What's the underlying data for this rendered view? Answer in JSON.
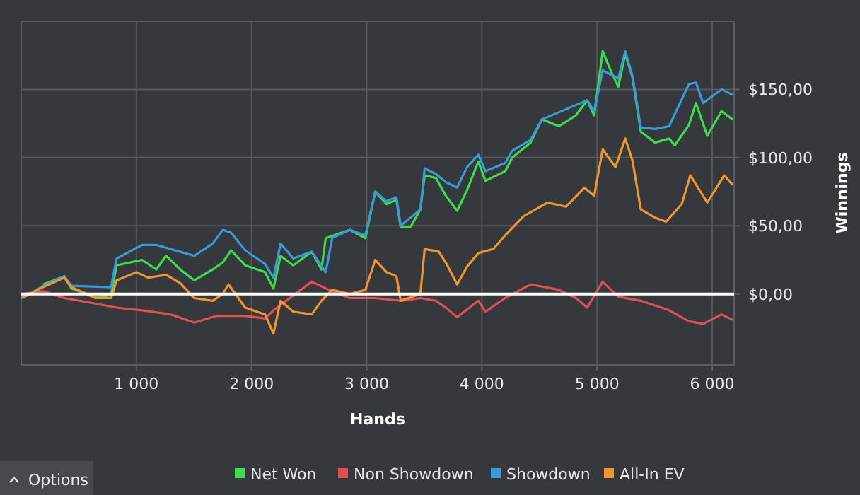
{
  "chart_data": {
    "type": "line",
    "xlabel": "Hands",
    "ylabel": "Winnings",
    "xlim": [
      0,
      6190
    ],
    "ylim": [
      -52,
      200
    ],
    "xticks": [
      {
        "value": 1000,
        "label": "1 000"
      },
      {
        "value": 2000,
        "label": "2 000"
      },
      {
        "value": 3000,
        "label": "3 000"
      },
      {
        "value": 4000,
        "label": "4 000"
      },
      {
        "value": 5000,
        "label": "5 000"
      },
      {
        "value": 6000,
        "label": "6 000"
      }
    ],
    "yticks": [
      {
        "value": 0,
        "label": "$0,00"
      },
      {
        "value": 50,
        "label": "$50,00"
      },
      {
        "value": 100,
        "label": "$100,00"
      },
      {
        "value": 150,
        "label": "$150,00"
      }
    ],
    "grid": true,
    "legend": "bottom",
    "line_style": "solid",
    "ref_lines": [
      {
        "axis": "y",
        "value": 0,
        "color": "#ffffff"
      }
    ],
    "annotations": [
      "Options"
    ],
    "series": [
      {
        "name": "Net Won",
        "color": "#3ddc4a",
        "x": [
          190,
          374,
          436,
          644,
          780,
          828,
          1049,
          1172,
          1258,
          1380,
          1503,
          1663,
          1749,
          1822,
          1945,
          2117,
          2190,
          2252,
          2362,
          2522,
          2607,
          2644,
          2853,
          2988,
          3074,
          3172,
          3258,
          3295,
          3380,
          3466,
          3503,
          3601,
          3687,
          3785,
          3871,
          3969,
          4031,
          4202,
          4264,
          4423,
          4521,
          4669,
          4816,
          4914,
          4975,
          5049,
          5123,
          5184,
          5245,
          5307,
          5380,
          5503,
          5626,
          5675,
          5798,
          5859,
          5957,
          6080,
          6178
        ],
        "values": [
          7,
          13,
          4,
          -2,
          -1,
          21,
          25,
          18,
          28,
          18,
          10,
          18,
          23,
          32,
          21,
          16,
          4,
          28,
          21,
          31,
          18,
          41,
          47,
          41,
          75,
          66,
          69,
          49,
          49,
          62,
          87,
          85,
          72,
          61,
          76,
          97,
          83,
          90,
          100,
          111,
          128,
          123,
          131,
          142,
          131,
          178,
          163,
          152,
          176,
          159,
          119,
          111,
          114,
          109,
          124,
          140,
          116,
          134,
          128
        ]
      },
      {
        "name": "Non Showdown",
        "color": "#e05050",
        "x": [
          0,
          190,
          374,
          644,
          830,
          1049,
          1300,
          1503,
          1700,
          1945,
          2117,
          2190,
          2300,
          2522,
          2700,
          2853,
          3074,
          3300,
          3466,
          3601,
          3687,
          3785,
          3969,
          4031,
          4202,
          4423,
          4669,
          4816,
          4914,
          5049,
          5184,
          5380,
          5626,
          5798,
          5920,
          6080,
          6178
        ],
        "values": [
          0,
          2,
          -3,
          -7,
          -10,
          -12,
          -15,
          -21,
          -16,
          -16,
          -18,
          -12,
          -5,
          9,
          2,
          -3,
          -3,
          -5,
          -3,
          -5,
          -10,
          -17,
          -5,
          -13,
          -3,
          7,
          3,
          -3,
          -10,
          9,
          -2,
          -5,
          -12,
          -20,
          -22,
          -15,
          -19
        ]
      },
      {
        "name": "Showdown",
        "color": "#3a9ad9",
        "x": [
          16,
          190,
          374,
          436,
          780,
          828,
          1049,
          1172,
          1503,
          1663,
          1749,
          1822,
          1945,
          2117,
          2190,
          2252,
          2362,
          2522,
          2644,
          2700,
          2853,
          2988,
          3074,
          3172,
          3258,
          3295,
          3466,
          3503,
          3601,
          3687,
          3785,
          3871,
          3969,
          4031,
          4202,
          4264,
          4423,
          4521,
          4914,
          4975,
          5049,
          5184,
          5245,
          5307,
          5380,
          5503,
          5626,
          5798,
          5859,
          5920,
          6080,
          6178
        ],
        "values": [
          -3,
          6,
          13,
          6,
          5,
          26,
          36,
          36,
          28,
          37,
          47,
          45,
          32,
          22,
          12,
          37,
          26,
          31,
          16,
          41,
          47,
          43,
          75,
          68,
          71,
          50,
          62,
          92,
          88,
          82,
          78,
          93,
          102,
          90,
          96,
          105,
          113,
          128,
          142,
          134,
          164,
          158,
          178,
          160,
          122,
          121,
          123,
          154,
          155,
          140,
          150,
          146
        ]
      },
      {
        "name": "All-In EV",
        "color": "#f0952f",
        "x": [
          0,
          190,
          374,
          436,
          644,
          780,
          828,
          1000,
          1100,
          1258,
          1380,
          1503,
          1663,
          1749,
          1800,
          1945,
          2117,
          2190,
          2252,
          2362,
          2522,
          2607,
          2700,
          2853,
          2988,
          3074,
          3172,
          3258,
          3295,
          3466,
          3503,
          3626,
          3700,
          3785,
          3871,
          3969,
          4100,
          4202,
          4361,
          4570,
          4730,
          4890,
          4975,
          5049,
          5160,
          5245,
          5307,
          5380,
          5503,
          5600,
          5736,
          5810,
          5957,
          6104,
          6178
        ],
        "values": [
          -3,
          5,
          12,
          5,
          -3,
          -3,
          10,
          16,
          12,
          14,
          8,
          -3,
          -5,
          0,
          7,
          -10,
          -15,
          -29,
          -5,
          -13,
          -15,
          -5,
          3,
          0,
          3,
          25,
          16,
          13,
          -5,
          0,
          33,
          31,
          21,
          7,
          20,
          30,
          33,
          43,
          57,
          67,
          64,
          78,
          72,
          106,
          93,
          114,
          98,
          62,
          56,
          53,
          66,
          87,
          67,
          87,
          80
        ]
      }
    ]
  }
}
